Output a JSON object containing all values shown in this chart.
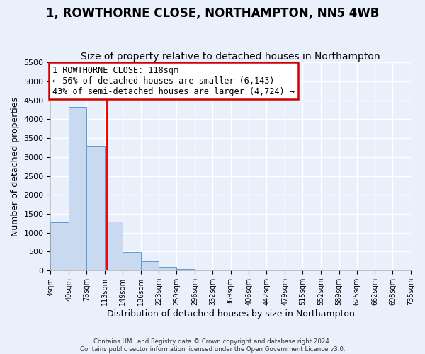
{
  "title": "1, ROWTHORNE CLOSE, NORTHAMPTON, NN5 4WB",
  "subtitle": "Size of property relative to detached houses in Northampton",
  "xlabel": "Distribution of detached houses by size in Northampton",
  "ylabel": "Number of detached properties",
  "bin_edges": [
    3,
    40,
    76,
    113,
    149,
    186,
    223,
    259,
    296,
    332,
    369,
    406,
    442,
    479,
    515,
    552,
    589,
    625,
    662,
    698,
    735
  ],
  "bin_values": [
    1270,
    4330,
    3300,
    1290,
    490,
    240,
    100,
    50,
    0,
    0,
    0,
    0,
    0,
    0,
    0,
    0,
    0,
    0,
    0,
    0
  ],
  "bar_color": "#c9d9f0",
  "bar_edgecolor": "#5b9bd5",
  "red_line_x": 118,
  "ylim": [
    0,
    5500
  ],
  "yticks": [
    0,
    500,
    1000,
    1500,
    2000,
    2500,
    3000,
    3500,
    4000,
    4500,
    5000,
    5500
  ],
  "xtick_labels": [
    "3sqm",
    "40sqm",
    "76sqm",
    "113sqm",
    "149sqm",
    "186sqm",
    "223sqm",
    "259sqm",
    "296sqm",
    "332sqm",
    "369sqm",
    "406sqm",
    "442sqm",
    "479sqm",
    "515sqm",
    "552sqm",
    "589sqm",
    "625sqm",
    "662sqm",
    "698sqm",
    "735sqm"
  ],
  "annotation_title": "1 ROWTHORNE CLOSE: 118sqm",
  "annotation_line1": "← 56% of detached houses are smaller (6,143)",
  "annotation_line2": "43% of semi-detached houses are larger (4,724) →",
  "annotation_box_color": "#ffffff",
  "annotation_box_edgecolor": "#cc0000",
  "footer1": "Contains HM Land Registry data © Crown copyright and database right 2024.",
  "footer2": "Contains public sector information licensed under the Open Government Licence v3.0.",
  "bg_color": "#eaf0fb",
  "grid_color": "#ffffff",
  "title_fontsize": 12,
  "subtitle_fontsize": 10
}
